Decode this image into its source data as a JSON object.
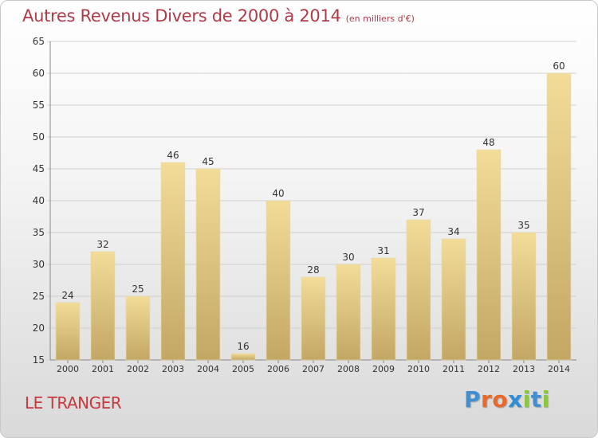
{
  "title": "Autres Revenus Divers de 2000 à 2014",
  "subtitle": "(en milliers d'€)",
  "location": "LE TRANGER",
  "logo": {
    "text": "Proxiti",
    "letter_colors": [
      "#3f8fd2",
      "#e8692a",
      "#e8692a",
      "#2e8fd6",
      "#8cc63f",
      "#3f8fd2",
      "#8cc63f"
    ]
  },
  "colors": {
    "title": "#b03a48",
    "bar_top": "#f2dc98",
    "bar_bottom": "#c3a764",
    "grid": "#cfcfcf"
  },
  "chart_data": {
    "type": "bar",
    "categories": [
      "2000",
      "2001",
      "2002",
      "2003",
      "2004",
      "2005",
      "2006",
      "2007",
      "2008",
      "2009",
      "2010",
      "2011",
      "2012",
      "2013",
      "2014"
    ],
    "values": [
      24,
      32,
      25,
      46,
      45,
      16,
      40,
      28,
      30,
      31,
      37,
      34,
      48,
      35,
      60
    ],
    "title": "Autres Revenus Divers de 2000 à 2014",
    "subtitle": "(en milliers d'€)",
    "xlabel": "",
    "ylabel": "",
    "ylim": [
      15,
      65
    ],
    "yticks": [
      15,
      20,
      25,
      30,
      35,
      40,
      45,
      50,
      55,
      60,
      65
    ],
    "grid": true,
    "data_labels": true
  }
}
